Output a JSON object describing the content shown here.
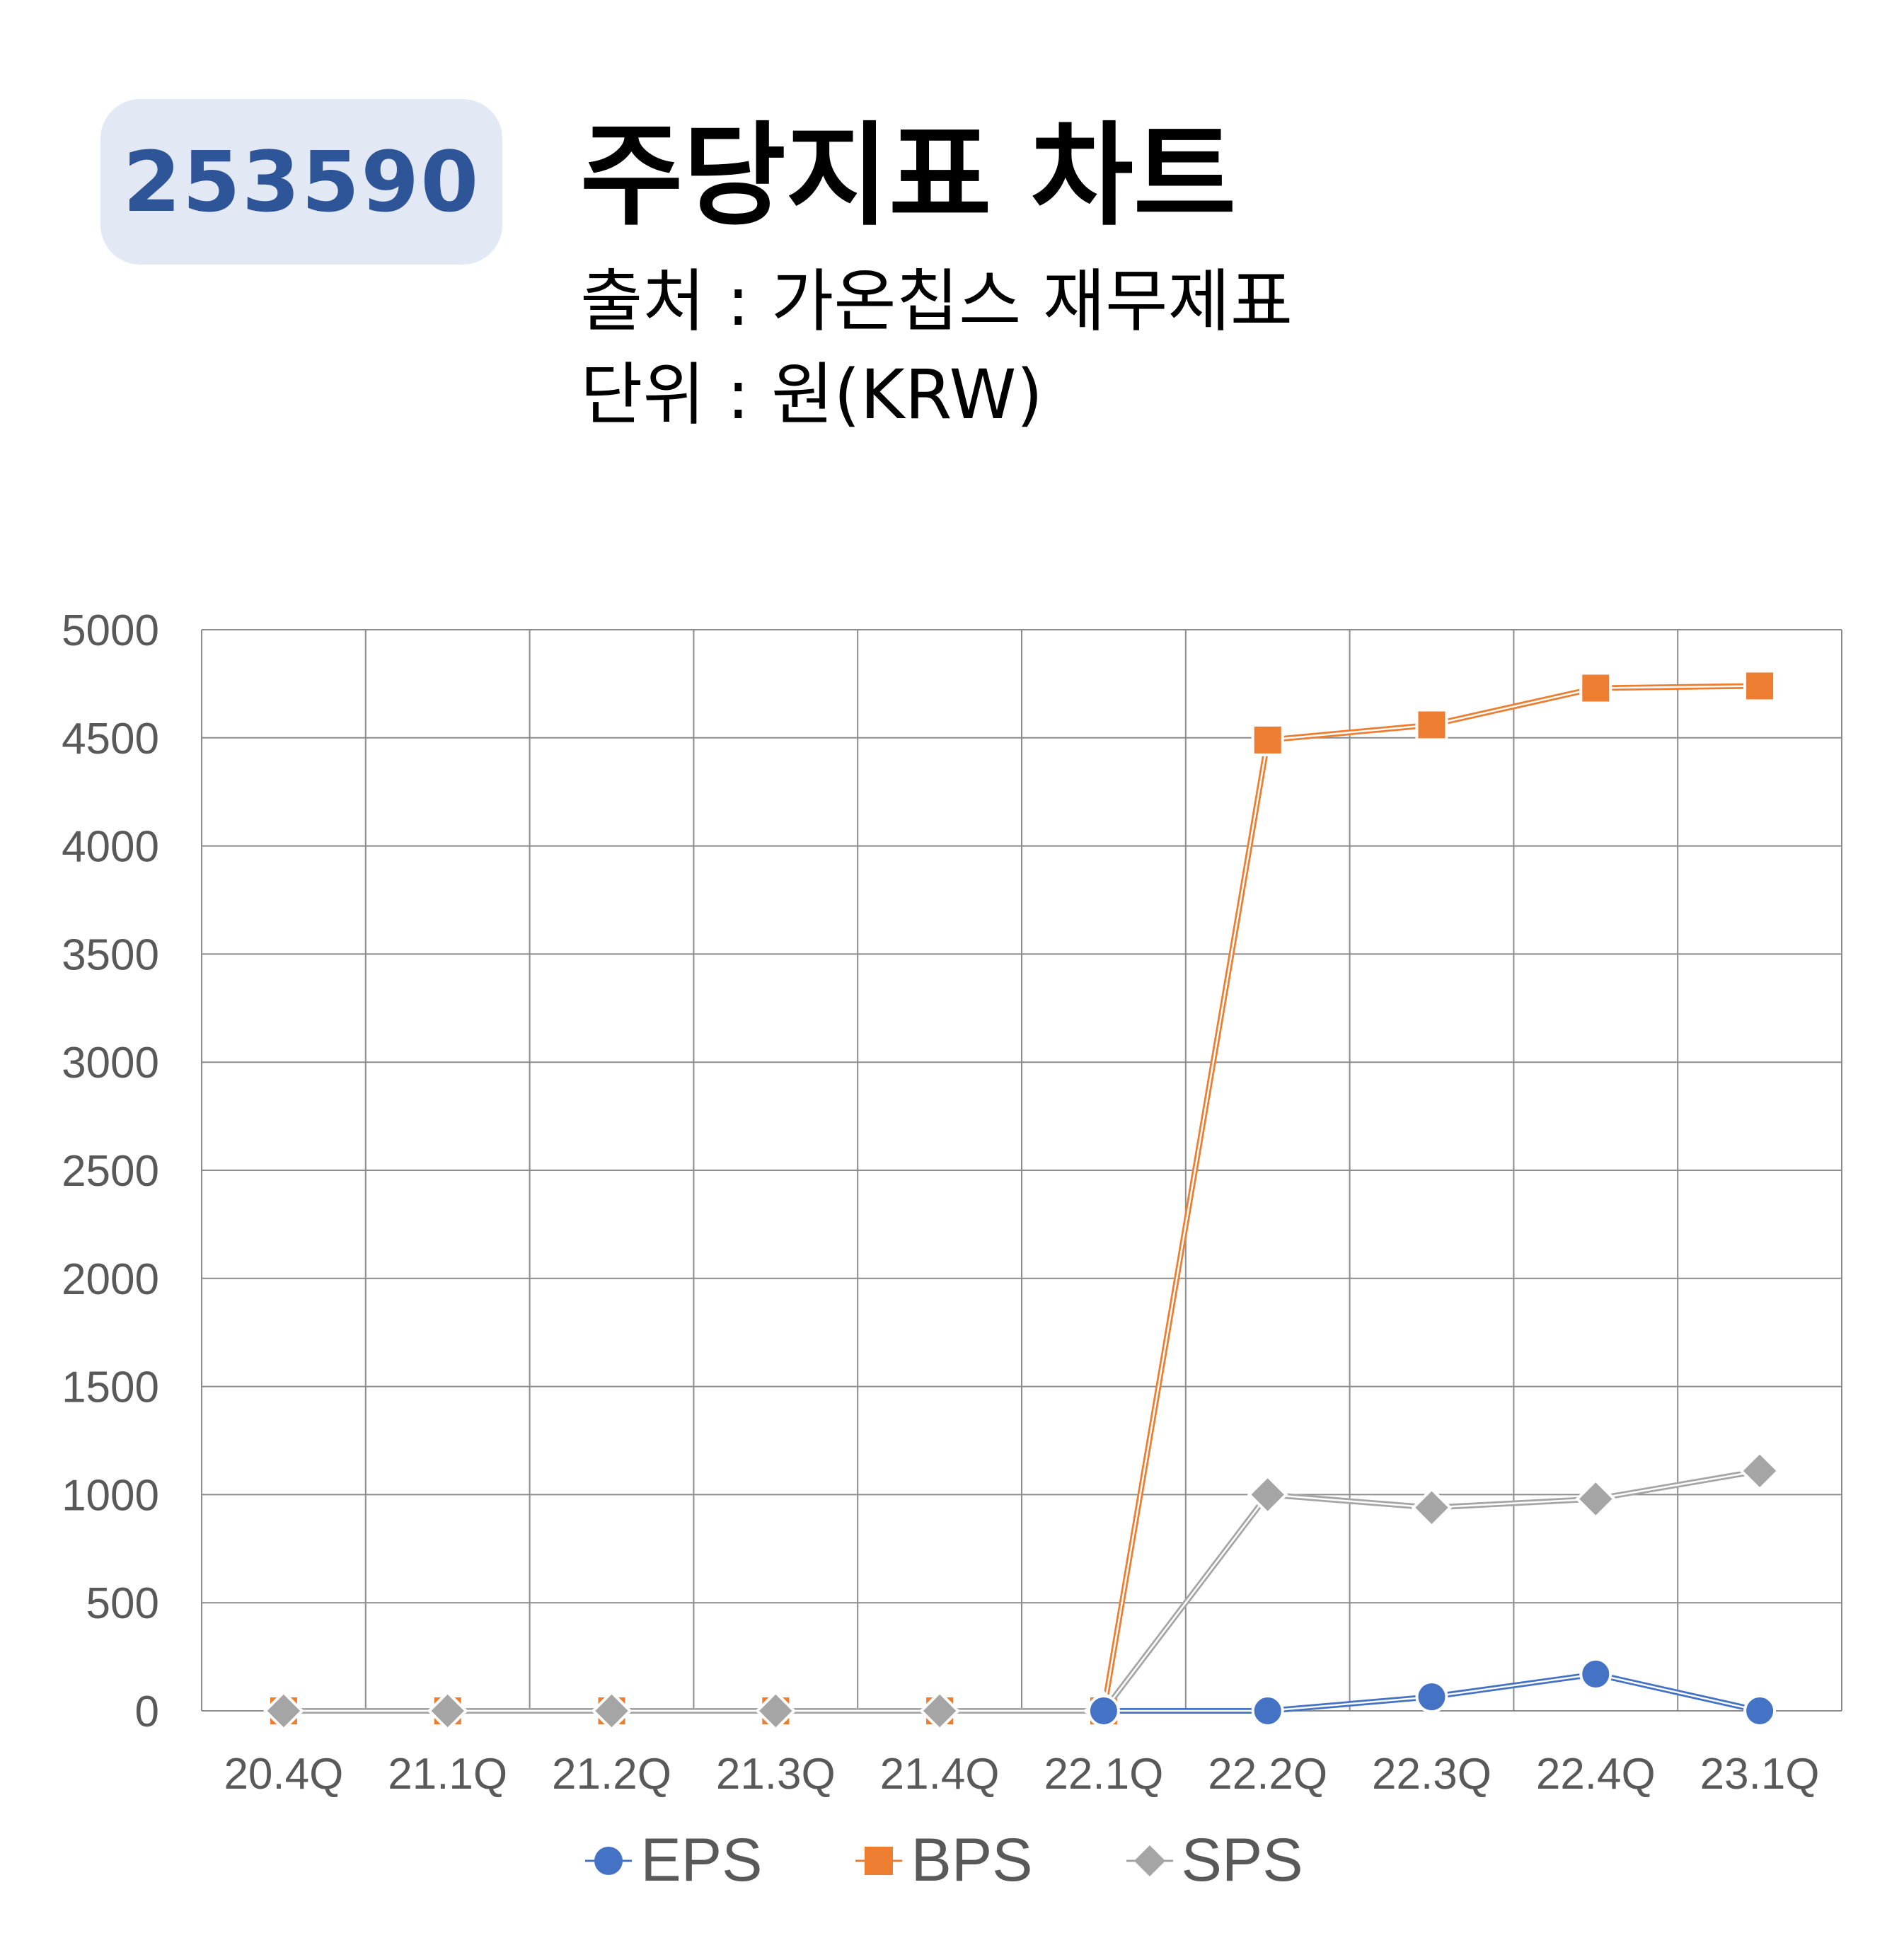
{
  "header": {
    "code": "253590",
    "title": "주당지표 차트",
    "source": "출처 : 가온칩스 재무제표",
    "unit": "단위 : 원(KRW)"
  },
  "colors": {
    "badge_bg": "#e2e8f4",
    "badge_text": "#2e5597",
    "eps": "#4472c4",
    "bps": "#ed7d31",
    "sps": "#a5a5a5",
    "grid": "#888888"
  },
  "chart_data": {
    "type": "line",
    "categories": [
      "20.4Q",
      "21.1Q",
      "21.2Q",
      "21.3Q",
      "21.4Q",
      "22.1Q",
      "22.2Q",
      "22.3Q",
      "22.4Q",
      "23.1Q"
    ],
    "y_ticks": [
      "0",
      "500",
      "1000",
      "1500",
      "2000",
      "2500",
      "3000",
      "3500",
      "4000",
      "4500",
      "5000"
    ],
    "ylim": [
      0,
      5000
    ],
    "grid": true,
    "legend_position": "bottom",
    "series": [
      {
        "name": "EPS",
        "marker": "circle",
        "color": "#4472c4",
        "values": [
          null,
          null,
          null,
          null,
          null,
          0,
          0,
          65,
          170,
          0
        ]
      },
      {
        "name": "BPS",
        "marker": "square",
        "color": "#ed7d31",
        "values": [
          0,
          0,
          0,
          0,
          0,
          0,
          4490,
          4560,
          4730,
          4740
        ]
      },
      {
        "name": "SPS",
        "marker": "diamond",
        "color": "#a5a5a5",
        "values": [
          0,
          0,
          0,
          0,
          0,
          0,
          1000,
          940,
          980,
          1110
        ]
      }
    ]
  }
}
